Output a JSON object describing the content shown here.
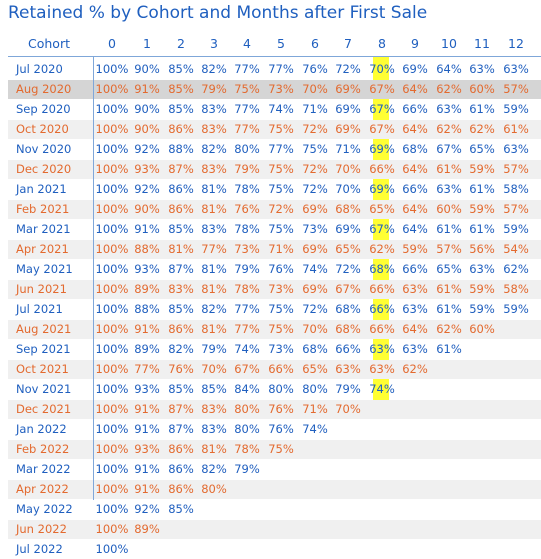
{
  "chart_data": {
    "type": "table",
    "title": "Retained % by Cohort and Months after First Sale",
    "row_header": "Cohort",
    "columns": [
      "0",
      "1",
      "2",
      "3",
      "4",
      "5",
      "6",
      "7",
      "8",
      "9",
      "10",
      "11",
      "12"
    ],
    "highlighted_column": "8",
    "highlight_color": "#ffff33",
    "text_colors": {
      "odd_rows": "#1f5fbf",
      "even_rows": "#e36a2f"
    },
    "selected_row": "Aug 2020",
    "rows": [
      {
        "cohort": "Jul 2020",
        "values": [
          "100%",
          "90%",
          "85%",
          "82%",
          "77%",
          "77%",
          "76%",
          "72%",
          "70%",
          "69%",
          "64%",
          "63%",
          "63%"
        ]
      },
      {
        "cohort": "Aug 2020",
        "values": [
          "100%",
          "91%",
          "85%",
          "79%",
          "75%",
          "73%",
          "70%",
          "69%",
          "67%",
          "64%",
          "62%",
          "60%",
          "57%"
        ]
      },
      {
        "cohort": "Sep 2020",
        "values": [
          "100%",
          "90%",
          "85%",
          "83%",
          "77%",
          "74%",
          "71%",
          "69%",
          "67%",
          "66%",
          "63%",
          "61%",
          "59%"
        ]
      },
      {
        "cohort": "Oct 2020",
        "values": [
          "100%",
          "90%",
          "86%",
          "83%",
          "77%",
          "75%",
          "72%",
          "69%",
          "67%",
          "64%",
          "62%",
          "62%",
          "61%"
        ]
      },
      {
        "cohort": "Nov 2020",
        "values": [
          "100%",
          "92%",
          "88%",
          "82%",
          "80%",
          "77%",
          "75%",
          "71%",
          "69%",
          "68%",
          "67%",
          "65%",
          "63%"
        ]
      },
      {
        "cohort": "Dec 2020",
        "values": [
          "100%",
          "93%",
          "87%",
          "83%",
          "79%",
          "75%",
          "72%",
          "70%",
          "66%",
          "64%",
          "61%",
          "59%",
          "57%"
        ]
      },
      {
        "cohort": "Jan 2021",
        "values": [
          "100%",
          "92%",
          "86%",
          "81%",
          "78%",
          "75%",
          "72%",
          "70%",
          "69%",
          "66%",
          "63%",
          "61%",
          "58%"
        ]
      },
      {
        "cohort": "Feb 2021",
        "values": [
          "100%",
          "90%",
          "86%",
          "81%",
          "76%",
          "72%",
          "69%",
          "68%",
          "65%",
          "64%",
          "60%",
          "59%",
          "57%"
        ]
      },
      {
        "cohort": "Mar 2021",
        "values": [
          "100%",
          "91%",
          "85%",
          "83%",
          "78%",
          "75%",
          "73%",
          "69%",
          "67%",
          "64%",
          "61%",
          "61%",
          "59%"
        ]
      },
      {
        "cohort": "Apr 2021",
        "values": [
          "100%",
          "88%",
          "81%",
          "77%",
          "73%",
          "71%",
          "69%",
          "65%",
          "62%",
          "59%",
          "57%",
          "56%",
          "54%"
        ]
      },
      {
        "cohort": "May 2021",
        "values": [
          "100%",
          "93%",
          "87%",
          "81%",
          "79%",
          "76%",
          "74%",
          "72%",
          "68%",
          "66%",
          "65%",
          "63%",
          "62%"
        ]
      },
      {
        "cohort": "Jun 2021",
        "values": [
          "100%",
          "89%",
          "83%",
          "81%",
          "78%",
          "73%",
          "69%",
          "67%",
          "66%",
          "63%",
          "61%",
          "59%",
          "58%"
        ]
      },
      {
        "cohort": "Jul 2021",
        "values": [
          "100%",
          "88%",
          "85%",
          "82%",
          "77%",
          "75%",
          "72%",
          "68%",
          "66%",
          "63%",
          "61%",
          "59%",
          "59%"
        ]
      },
      {
        "cohort": "Aug 2021",
        "values": [
          "100%",
          "91%",
          "86%",
          "81%",
          "77%",
          "75%",
          "70%",
          "68%",
          "66%",
          "64%",
          "62%",
          "60%",
          ""
        ]
      },
      {
        "cohort": "Sep 2021",
        "values": [
          "100%",
          "89%",
          "82%",
          "79%",
          "74%",
          "73%",
          "68%",
          "66%",
          "63%",
          "63%",
          "61%",
          "",
          ""
        ]
      },
      {
        "cohort": "Oct 2021",
        "values": [
          "100%",
          "77%",
          "76%",
          "70%",
          "67%",
          "66%",
          "65%",
          "63%",
          "63%",
          "62%",
          "",
          "",
          ""
        ]
      },
      {
        "cohort": "Nov 2021",
        "values": [
          "100%",
          "93%",
          "85%",
          "85%",
          "84%",
          "80%",
          "80%",
          "79%",
          "74%",
          "",
          "",
          "",
          ""
        ]
      },
      {
        "cohort": "Dec 2021",
        "values": [
          "100%",
          "91%",
          "87%",
          "83%",
          "80%",
          "76%",
          "71%",
          "70%",
          "",
          "",
          "",
          "",
          ""
        ]
      },
      {
        "cohort": "Jan 2022",
        "values": [
          "100%",
          "91%",
          "87%",
          "83%",
          "80%",
          "76%",
          "74%",
          "",
          "",
          "",
          "",
          "",
          ""
        ]
      },
      {
        "cohort": "Feb 2022",
        "values": [
          "100%",
          "93%",
          "86%",
          "81%",
          "78%",
          "75%",
          "",
          "",
          "",
          "",
          "",
          "",
          ""
        ]
      },
      {
        "cohort": "Mar 2022",
        "values": [
          "100%",
          "91%",
          "86%",
          "82%",
          "79%",
          "",
          "",
          "",
          "",
          "",
          "",
          "",
          ""
        ]
      },
      {
        "cohort": "Apr 2022",
        "values": [
          "100%",
          "91%",
          "86%",
          "80%",
          "",
          "",
          "",
          "",
          "",
          "",
          "",
          "",
          ""
        ]
      },
      {
        "cohort": "May 2022",
        "values": [
          "100%",
          "92%",
          "85%",
          "",
          "",
          "",
          "",
          "",
          "",
          "",
          "",
          "",
          ""
        ]
      },
      {
        "cohort": "Jun 2022",
        "values": [
          "100%",
          "89%",
          "",
          "",
          "",
          "",
          "",
          "",
          "",
          "",
          "",
          "",
          ""
        ]
      },
      {
        "cohort": "Jul 2022",
        "values": [
          "100%",
          "",
          "",
          "",
          "",
          "",
          "",
          "",
          "",
          "",
          "",
          "",
          ""
        ]
      }
    ]
  }
}
